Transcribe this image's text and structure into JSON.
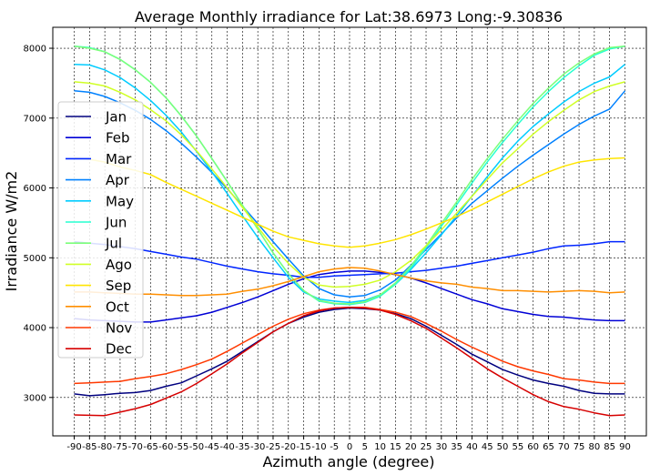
{
  "chart_data": {
    "type": "line",
    "title": "Average Monthly irradiance for Lat:38.6973 Long:-9.30836",
    "xlabel": "Azimuth angle (degree)",
    "ylabel": "Irradiance W/m2",
    "x": [
      -90,
      -85,
      -80,
      -75,
      -70,
      -65,
      -60,
      -55,
      -50,
      -45,
      -40,
      -35,
      -30,
      -25,
      -20,
      -15,
      -10,
      -5,
      0,
      5,
      10,
      15,
      20,
      25,
      30,
      35,
      40,
      45,
      50,
      55,
      60,
      65,
      70,
      75,
      80,
      85,
      90
    ],
    "x_tick_labels": [
      "-90",
      "-85",
      "-80",
      "-75",
      "-70",
      "-65",
      "-60",
      "-55",
      "-50",
      "-45",
      "-40",
      "-35",
      "-30",
      "-25",
      "-20",
      "-15",
      "-10",
      "-5",
      "0",
      "5",
      "10",
      "15",
      "20",
      "25",
      "30",
      "35",
      "40",
      "45",
      "50",
      "55",
      "60",
      "65",
      "70",
      "75",
      "80",
      "85",
      "90"
    ],
    "xlim": [
      -97,
      97
    ],
    "ylim": [
      2450,
      8300
    ],
    "y_ticks": [
      3000,
      4000,
      5000,
      6000,
      7000,
      8000
    ],
    "grid": true,
    "legend_position": "left",
    "series": [
      {
        "name": "Jan",
        "color": "#00007f",
        "values": [
          3050,
          3025,
          3040,
          3060,
          3070,
          3100,
          3160,
          3210,
          3310,
          3410,
          3520,
          3660,
          3800,
          3940,
          4060,
          4150,
          4220,
          4260,
          4280,
          4270,
          4250,
          4200,
          4130,
          4020,
          3890,
          3760,
          3620,
          3510,
          3400,
          3320,
          3250,
          3200,
          3160,
          3100,
          3060,
          3050,
          3050
        ]
      },
      {
        "name": "Feb",
        "color": "#0000d6",
        "values": [
          4130,
          4110,
          4100,
          4090,
          4080,
          4080,
          4110,
          4140,
          4170,
          4220,
          4290,
          4360,
          4440,
          4530,
          4620,
          4700,
          4760,
          4790,
          4810,
          4810,
          4790,
          4760,
          4710,
          4640,
          4560,
          4480,
          4400,
          4340,
          4270,
          4230,
          4190,
          4160,
          4150,
          4130,
          4110,
          4100,
          4100
        ]
      },
      {
        "name": "Mar",
        "color": "#0025ff",
        "values": [
          5230,
          5210,
          5190,
          5160,
          5130,
          5090,
          5050,
          5010,
          4980,
          4930,
          4880,
          4840,
          4800,
          4770,
          4750,
          4720,
          4720,
          4740,
          4750,
          4760,
          4770,
          4780,
          4800,
          4820,
          4850,
          4880,
          4920,
          4960,
          5000,
          5040,
          5080,
          5130,
          5170,
          5180,
          5200,
          5230,
          5230
        ]
      },
      {
        "name": "Apr",
        "color": "#0081ff",
        "values": [
          7390,
          7370,
          7310,
          7220,
          7110,
          6980,
          6820,
          6640,
          6440,
          6220,
          5990,
          5740,
          5490,
          5230,
          4980,
          4740,
          4560,
          4470,
          4440,
          4460,
          4540,
          4680,
          4890,
          5120,
          5340,
          5570,
          5780,
          5960,
          6140,
          6310,
          6470,
          6620,
          6770,
          6910,
          7030,
          7130,
          7390
        ]
      },
      {
        "name": "May",
        "color": "#00ccff",
        "values": [
          7770,
          7760,
          7690,
          7580,
          7430,
          7250,
          7040,
          6800,
          6520,
          6230,
          5920,
          5600,
          5290,
          5000,
          4720,
          4510,
          4410,
          4380,
          4360,
          4390,
          4470,
          4620,
          4830,
          5070,
          5330,
          5600,
          5880,
          6160,
          6430,
          6670,
          6880,
          7060,
          7230,
          7380,
          7500,
          7590,
          7770
        ]
      },
      {
        "name": "Jun",
        "color": "#26ffd0",
        "values": [
          8030,
          8010,
          7950,
          7840,
          7690,
          7510,
          7290,
          7030,
          6740,
          6420,
          6090,
          5750,
          5410,
          5070,
          4770,
          4530,
          4380,
          4340,
          4330,
          4360,
          4450,
          4620,
          4850,
          5140,
          5450,
          5760,
          6070,
          6370,
          6650,
          6910,
          7160,
          7380,
          7580,
          7750,
          7900,
          7990,
          8030
        ]
      },
      {
        "name": "Jul",
        "color": "#7cff79",
        "values": [
          8030,
          8000,
          7950,
          7840,
          7690,
          7510,
          7290,
          7030,
          6740,
          6420,
          6090,
          5750,
          5410,
          5070,
          4770,
          4530,
          4390,
          4350,
          4340,
          4370,
          4470,
          4640,
          4880,
          5170,
          5490,
          5800,
          6120,
          6420,
          6700,
          6960,
          7210,
          7430,
          7630,
          7790,
          7920,
          8010,
          8030
        ]
      },
      {
        "name": "Ago",
        "color": "#d0ff26",
        "values": [
          7520,
          7500,
          7460,
          7370,
          7260,
          7120,
          6960,
          6760,
          6530,
          6270,
          6000,
          5720,
          5440,
          5160,
          4920,
          4720,
          4610,
          4580,
          4590,
          4620,
          4680,
          4800,
          4960,
          5170,
          5400,
          5640,
          5880,
          6120,
          6360,
          6560,
          6770,
          6950,
          7110,
          7260,
          7380,
          7460,
          7520
        ]
      },
      {
        "name": "Sep",
        "color": "#ffe500",
        "values": [
          6430,
          6410,
          6370,
          6300,
          6250,
          6190,
          6080,
          5980,
          5880,
          5780,
          5680,
          5580,
          5480,
          5380,
          5300,
          5250,
          5200,
          5170,
          5150,
          5170,
          5210,
          5260,
          5330,
          5410,
          5500,
          5590,
          5690,
          5800,
          5910,
          6020,
          6130,
          6230,
          6310,
          6370,
          6400,
          6420,
          6430
        ]
      },
      {
        "name": "Oct",
        "color": "#ff8e00",
        "values": [
          4510,
          4510,
          4500,
          4490,
          4480,
          4480,
          4470,
          4460,
          4460,
          4470,
          4480,
          4520,
          4550,
          4600,
          4660,
          4730,
          4800,
          4840,
          4860,
          4850,
          4810,
          4760,
          4710,
          4670,
          4640,
          4620,
          4580,
          4560,
          4530,
          4530,
          4520,
          4510,
          4520,
          4530,
          4520,
          4500,
          4510
        ]
      },
      {
        "name": "Nov",
        "color": "#ff3800",
        "values": [
          3200,
          3210,
          3220,
          3230,
          3270,
          3300,
          3340,
          3400,
          3470,
          3550,
          3660,
          3780,
          3900,
          4020,
          4120,
          4200,
          4250,
          4280,
          4290,
          4290,
          4260,
          4220,
          4160,
          4060,
          3950,
          3830,
          3720,
          3620,
          3520,
          3440,
          3380,
          3330,
          3270,
          3250,
          3220,
          3200,
          3200
        ]
      },
      {
        "name": "Dec",
        "color": "#d60000",
        "values": [
          2750,
          2745,
          2740,
          2790,
          2840,
          2900,
          2990,
          3080,
          3200,
          3340,
          3480,
          3640,
          3790,
          3940,
          4060,
          4170,
          4240,
          4280,
          4290,
          4280,
          4250,
          4190,
          4100,
          3990,
          3850,
          3710,
          3560,
          3410,
          3280,
          3160,
          3040,
          2940,
          2870,
          2830,
          2780,
          2740,
          2750
        ]
      }
    ]
  }
}
